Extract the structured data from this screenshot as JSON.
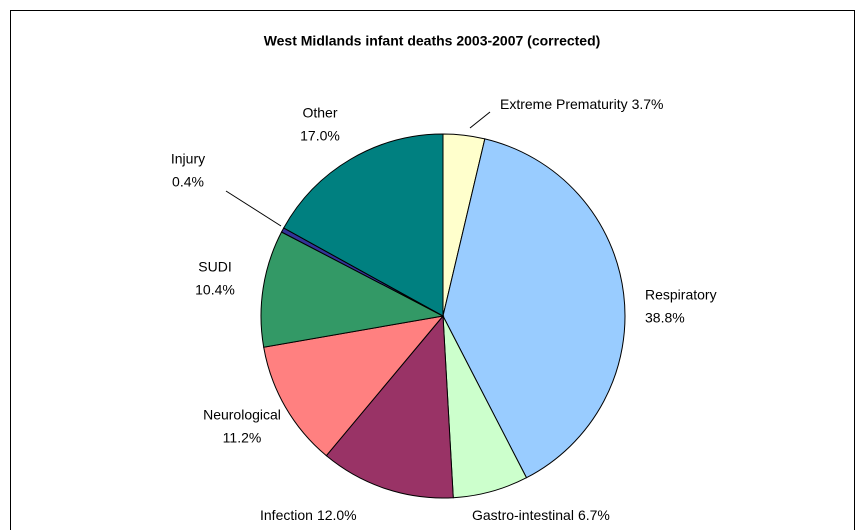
{
  "chart_data": {
    "type": "pie",
    "title": "West Midlands  infant deaths 2003-2007 (corrected)",
    "categories": [
      "Extreme Prematurity",
      "Respiratory",
      "Gastro-intestinal",
      "Infection",
      "Neurological",
      "SUDI",
      "Injury",
      "Other"
    ],
    "values": [
      3.7,
      38.8,
      6.7,
      12.0,
      11.2,
      10.4,
      0.4,
      17.0
    ],
    "value_labels": [
      "3.7%",
      "38.8%",
      "6.7%",
      "12.0%",
      "11.2%",
      "10.4%",
      "0.4%",
      "17.0%"
    ],
    "colors": [
      "#ffffcc",
      "#99ccff",
      "#ccffcc",
      "#993366",
      "#ff8080",
      "#339966",
      "#333399",
      "#008080"
    ]
  }
}
